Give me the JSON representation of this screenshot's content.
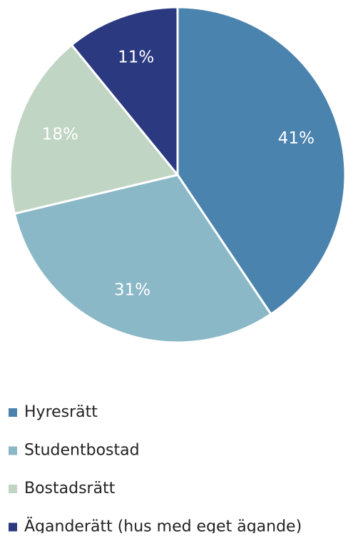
{
  "chart_data": {
    "type": "pie",
    "categories": [
      "Hyresrätt",
      "Studentbostad",
      "Bostadsrätt",
      "Äganderätt (hus med eget ägande)"
    ],
    "values": [
      41,
      31,
      18,
      11
    ],
    "value_labels": [
      "41%",
      "31%",
      "18%",
      "11%"
    ],
    "colors": [
      "#4a83ae",
      "#8bb8c7",
      "#c0d5c3",
      "#2b3a80"
    ],
    "legend": "bottom"
  }
}
